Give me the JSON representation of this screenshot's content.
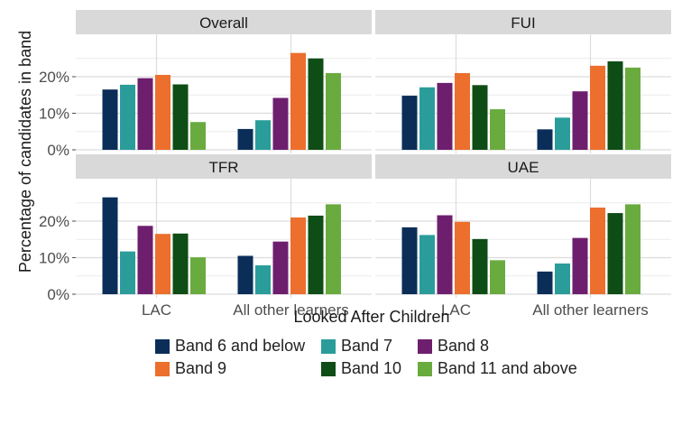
{
  "chart_data": {
    "type": "bar",
    "ylabel": "Percentage of candidates in band",
    "xlabel": "Looked After Children",
    "categories": [
      "LAC",
      "All other learners"
    ],
    "yticks": [
      "0%",
      "10%",
      "20%"
    ],
    "ylim": [
      0,
      27
    ],
    "grid": true,
    "legend_position": "bottom",
    "series": [
      {
        "name": "Band 6 and below",
        "color": "#0b2e59"
      },
      {
        "name": "Band 7",
        "color": "#2a9d9a"
      },
      {
        "name": "Band 8",
        "color": "#6d1f6e"
      },
      {
        "name": "Band 9",
        "color": "#ec6f2d"
      },
      {
        "name": "Band 10",
        "color": "#0e4d16"
      },
      {
        "name": "Band 11 and above",
        "color": "#6aab3f"
      }
    ],
    "panels": [
      {
        "title": "Overall",
        "values": [
          [
            16.5,
            17.8,
            19.6,
            20.5,
            17.9,
            7.6
          ],
          [
            5.7,
            8.1,
            14.2,
            26.5,
            25.0,
            21.0
          ]
        ]
      },
      {
        "title": "FUI",
        "values": [
          [
            14.8,
            17.1,
            18.3,
            21.0,
            17.7,
            11.1
          ],
          [
            5.6,
            8.8,
            16.0,
            23.0,
            24.2,
            22.5
          ]
        ]
      },
      {
        "title": "TFR",
        "values": [
          [
            26.5,
            11.7,
            18.7,
            16.5,
            16.6,
            10.1
          ],
          [
            10.5,
            7.9,
            14.4,
            21.0,
            21.5,
            24.6
          ]
        ]
      },
      {
        "title": "UAE",
        "values": [
          [
            18.3,
            16.2,
            21.6,
            19.8,
            15.1,
            9.3
          ],
          [
            6.2,
            8.4,
            15.4,
            23.7,
            22.2,
            24.6
          ]
        ]
      }
    ]
  }
}
